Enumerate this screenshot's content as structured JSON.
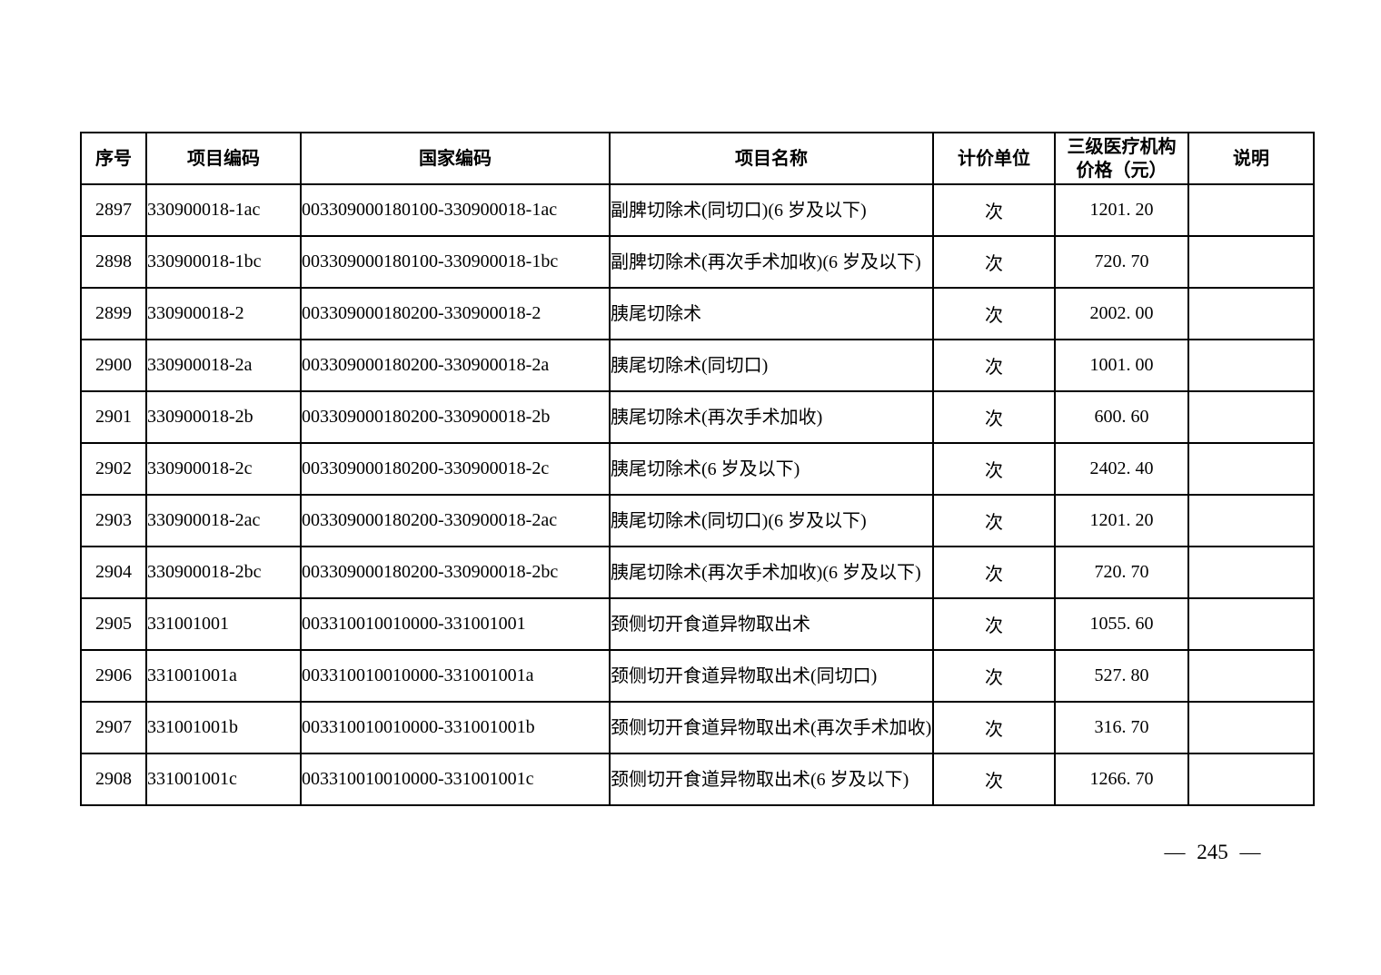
{
  "page": {
    "number_label": "— 245 —"
  },
  "table": {
    "headers": {
      "seq": "序号",
      "item_code": "项目编码",
      "national_code": "国家编码",
      "item_name": "项目名称",
      "unit": "计价单位",
      "price_line1": "三级医疗机构",
      "price_line2": "价格（元）",
      "note": "说明"
    },
    "rows": [
      {
        "seq": "2897",
        "item_code": "330900018-1ac",
        "national_code": "003309000180100-330900018-1ac",
        "item_name": "副脾切除术(同切口)(6 岁及以下)",
        "unit": "次",
        "price": "1201. 20",
        "note": ""
      },
      {
        "seq": "2898",
        "item_code": "330900018-1bc",
        "national_code": "003309000180100-330900018-1bc",
        "item_name": "副脾切除术(再次手术加收)(6 岁及以下)",
        "unit": "次",
        "price": "720. 70",
        "note": ""
      },
      {
        "seq": "2899",
        "item_code": "330900018-2",
        "national_code": "003309000180200-330900018-2",
        "item_name": "胰尾切除术",
        "unit": "次",
        "price": "2002. 00",
        "note": ""
      },
      {
        "seq": "2900",
        "item_code": "330900018-2a",
        "national_code": "003309000180200-330900018-2a",
        "item_name": "胰尾切除术(同切口)",
        "unit": "次",
        "price": "1001. 00",
        "note": ""
      },
      {
        "seq": "2901",
        "item_code": "330900018-2b",
        "national_code": "003309000180200-330900018-2b",
        "item_name": "胰尾切除术(再次手术加收)",
        "unit": "次",
        "price": "600. 60",
        "note": ""
      },
      {
        "seq": "2902",
        "item_code": "330900018-2c",
        "national_code": "003309000180200-330900018-2c",
        "item_name": "胰尾切除术(6 岁及以下)",
        "unit": "次",
        "price": "2402. 40",
        "note": ""
      },
      {
        "seq": "2903",
        "item_code": "330900018-2ac",
        "national_code": "003309000180200-330900018-2ac",
        "item_name": "胰尾切除术(同切口)(6 岁及以下)",
        "unit": "次",
        "price": "1201. 20",
        "note": ""
      },
      {
        "seq": "2904",
        "item_code": "330900018-2bc",
        "national_code": "003309000180200-330900018-2bc",
        "item_name": "胰尾切除术(再次手术加收)(6 岁及以下)",
        "unit": "次",
        "price": "720. 70",
        "note": ""
      },
      {
        "seq": "2905",
        "item_code": "331001001",
        "national_code": "003310010010000-331001001",
        "item_name": "颈侧切开食道异物取出术",
        "unit": "次",
        "price": "1055. 60",
        "note": ""
      },
      {
        "seq": "2906",
        "item_code": "331001001a",
        "national_code": "003310010010000-331001001a",
        "item_name": "颈侧切开食道异物取出术(同切口)",
        "unit": "次",
        "price": "527. 80",
        "note": ""
      },
      {
        "seq": "2907",
        "item_code": "331001001b",
        "national_code": "003310010010000-331001001b",
        "item_name": "颈侧切开食道异物取出术(再次手术加收)",
        "unit": "次",
        "price": "316. 70",
        "note": ""
      },
      {
        "seq": "2908",
        "item_code": "331001001c",
        "national_code": "003310010010000-331001001c",
        "item_name": "颈侧切开食道异物取出术(6 岁及以下)",
        "unit": "次",
        "price": "1266. 70",
        "note": ""
      }
    ]
  }
}
